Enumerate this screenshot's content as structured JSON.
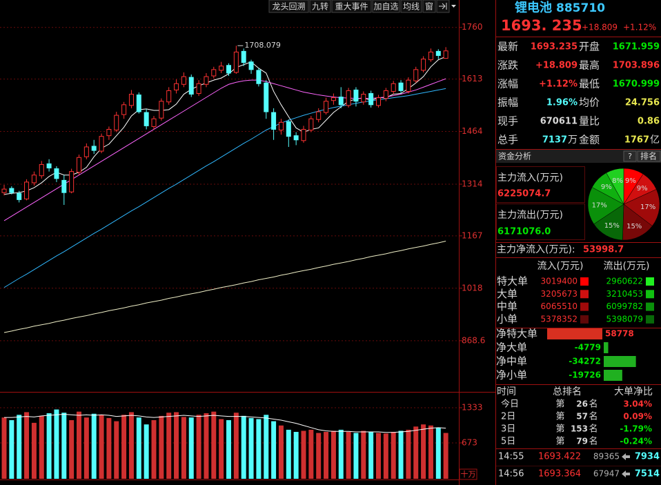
{
  "toolbar": {
    "buttons": [
      "龙头回溯",
      "九转",
      "重大事件",
      "加自选",
      "均线",
      "窗"
    ]
  },
  "chart_data": [
    {
      "type": "candlestick",
      "ylim": [
        729,
        1838
      ],
      "yticks": [
        1760,
        1613,
        1464,
        1314,
        1167,
        1018,
        868.6
      ],
      "up_color": "#ff3232",
      "down_color": "#54fcfc",
      "ohlc": [
        [
          1290,
          1312,
          1282,
          1300
        ],
        [
          1302,
          1308,
          1285,
          1290
        ],
        [
          1288,
          1295,
          1262,
          1270
        ],
        [
          1272,
          1328,
          1268,
          1320
        ],
        [
          1318,
          1350,
          1310,
          1340
        ],
        [
          1338,
          1380,
          1330,
          1370
        ],
        [
          1372,
          1385,
          1350,
          1360
        ],
        [
          1358,
          1365,
          1320,
          1330
        ],
        [
          1325,
          1340,
          1255,
          1290
        ],
        [
          1292,
          1358,
          1288,
          1350
        ],
        [
          1348,
          1398,
          1340,
          1390
        ],
        [
          1392,
          1430,
          1385,
          1420
        ],
        [
          1422,
          1440,
          1400,
          1410
        ],
        [
          1408,
          1458,
          1402,
          1450
        ],
        [
          1452,
          1478,
          1440,
          1470
        ],
        [
          1468,
          1520,
          1462,
          1510
        ],
        [
          1512,
          1548,
          1500,
          1540
        ],
        [
          1538,
          1582,
          1530,
          1570
        ],
        [
          1568,
          1575,
          1515,
          1520
        ],
        [
          1518,
          1528,
          1470,
          1480
        ],
        [
          1478,
          1508,
          1470,
          1500
        ],
        [
          1502,
          1558,
          1495,
          1550
        ],
        [
          1548,
          1590,
          1540,
          1580
        ],
        [
          1582,
          1612,
          1572,
          1600
        ],
        [
          1598,
          1632,
          1590,
          1620
        ],
        [
          1618,
          1626,
          1562,
          1570
        ],
        [
          1572,
          1610,
          1565,
          1600
        ],
        [
          1598,
          1630,
          1590,
          1620
        ],
        [
          1622,
          1648,
          1615,
          1640
        ],
        [
          1638,
          1662,
          1630,
          1650
        ],
        [
          1652,
          1658,
          1622,
          1630
        ],
        [
          1632,
          1708.079,
          1628,
          1690
        ],
        [
          1692,
          1700,
          1650,
          1660
        ],
        [
          1662,
          1668,
          1628,
          1640
        ],
        [
          1638,
          1645,
          1592,
          1600
        ],
        [
          1602,
          1610,
          1500,
          1520
        ],
        [
          1518,
          1530,
          1440,
          1470
        ],
        [
          1468,
          1500,
          1455,
          1490
        ],
        [
          1492,
          1498,
          1420,
          1450
        ],
        [
          1452,
          1462,
          1425,
          1440
        ],
        [
          1438,
          1480,
          1432,
          1470
        ],
        [
          1468,
          1508,
          1462,
          1500
        ],
        [
          1498,
          1530,
          1490,
          1520
        ],
        [
          1518,
          1560,
          1512,
          1550
        ],
        [
          1552,
          1572,
          1540,
          1560
        ],
        [
          1562,
          1590,
          1530,
          1540
        ],
        [
          1538,
          1588,
          1532,
          1580
        ],
        [
          1582,
          1590,
          1535,
          1550
        ],
        [
          1548,
          1578,
          1540,
          1570
        ],
        [
          1572,
          1580,
          1532,
          1540
        ],
        [
          1538,
          1568,
          1532,
          1560
        ],
        [
          1558,
          1588,
          1550,
          1580
        ],
        [
          1578,
          1608,
          1570,
          1600
        ],
        [
          1602,
          1610,
          1572,
          1580
        ],
        [
          1578,
          1618,
          1572,
          1610
        ],
        [
          1608,
          1648,
          1602,
          1640
        ],
        [
          1638,
          1678,
          1632,
          1670
        ],
        [
          1668,
          1700,
          1662,
          1690
        ],
        [
          1692,
          1698,
          1670,
          1680
        ],
        [
          1671.959,
          1703.896,
          1670.999,
          1693.235
        ]
      ],
      "ma": [
        {
          "color": "#ffffff",
          "values": [
            1285,
            1288,
            1290,
            1295,
            1304,
            1318,
            1336,
            1348,
            1340,
            1340,
            1348,
            1362,
            1392,
            1416,
            1428,
            1452,
            1476,
            1508,
            1526,
            1528,
            1524,
            1524,
            1526,
            1542,
            1570,
            1584,
            1594,
            1602,
            1610,
            1616,
            1628,
            1646,
            1654,
            1662,
            1644,
            1630,
            1578,
            1540,
            1506,
            1474,
            1462,
            1470,
            1474,
            1496,
            1518,
            1534,
            1550,
            1556,
            1560,
            1552,
            1560,
            1560,
            1570,
            1572,
            1586,
            1602,
            1620,
            1648,
            1668,
            1677
          ]
        },
        {
          "color": "#ff66ff",
          "values": [
            1210,
            1223,
            1236,
            1249,
            1262,
            1275,
            1288,
            1301,
            1314,
            1327,
            1340,
            1353,
            1366,
            1379,
            1392,
            1405,
            1418,
            1431,
            1444,
            1457,
            1470,
            1483,
            1496,
            1509,
            1522,
            1535,
            1548,
            1561,
            1574,
            1587,
            1598,
            1604,
            1608,
            1610,
            1610,
            1606,
            1600,
            1594,
            1588,
            1582,
            1576,
            1572,
            1568,
            1565,
            1562,
            1560,
            1559,
            1558,
            1558,
            1558,
            1560,
            1562,
            1566,
            1570,
            1576,
            1582,
            1590,
            1598,
            1606,
            1614
          ]
        },
        {
          "color": "#30b8ff",
          "values": [
            1020,
            1033,
            1046,
            1058,
            1071,
            1084,
            1097,
            1110,
            1122,
            1135,
            1148,
            1161,
            1174,
            1186,
            1199,
            1212,
            1225,
            1238,
            1250,
            1263,
            1276,
            1289,
            1302,
            1314,
            1327,
            1340,
            1353,
            1366,
            1378,
            1391,
            1404,
            1417,
            1430,
            1442,
            1455,
            1468,
            1478,
            1488,
            1496,
            1503,
            1510,
            1516,
            1522,
            1527,
            1532,
            1536,
            1540,
            1544,
            1548,
            1551,
            1554,
            1557,
            1560,
            1563,
            1566,
            1570,
            1574,
            1578,
            1582,
            1586
          ]
        },
        {
          "color": "#f0f0c8",
          "values": [
            892,
            896,
            901,
            905,
            910,
            914,
            918,
            923,
            927,
            932,
            936,
            940,
            945,
            949,
            954,
            958,
            962,
            967,
            971,
            976,
            980,
            984,
            989,
            993,
            998,
            1002,
            1006,
            1011,
            1015,
            1020,
            1024,
            1028,
            1033,
            1037,
            1042,
            1046,
            1050,
            1055,
            1059,
            1064,
            1068,
            1072,
            1077,
            1081,
            1086,
            1090,
            1094,
            1099,
            1103,
            1108,
            1112,
            1116,
            1121,
            1125,
            1130,
            1134,
            1138,
            1143,
            1147,
            1152
          ]
        }
      ]
    },
    {
      "type": "bar",
      "unit": "十万",
      "ylim": [
        0,
        1579
      ],
      "yticks": [
        1333,
        673
      ],
      "values": [
        1150,
        1100,
        1200,
        1250,
        1050,
        1180,
        1230,
        1300,
        1240,
        1100,
        1260,
        1150,
        1220,
        1200,
        1140,
        1080,
        1200,
        1250,
        1150,
        1020,
        1100,
        1180,
        1240,
        1250,
        1160,
        1150,
        1200,
        1230,
        1260,
        1120,
        1100,
        1240,
        1180,
        1140,
        1120,
        1200,
        1080,
        1000,
        920,
        880,
        900,
        920,
        860,
        880,
        900,
        920,
        880,
        860,
        900,
        880,
        860,
        850,
        880,
        900,
        920,
        980,
        1020,
        1000,
        960,
        860
      ],
      "ma": [
        {
          "color": "#ffffff",
          "values": [
            1150,
            1150,
            1160,
            1170,
            1160,
            1180,
            1190,
            1200,
            1210,
            1200,
            1190,
            1200,
            1190,
            1200,
            1190,
            1170,
            1180,
            1190,
            1180,
            1160,
            1150,
            1160,
            1170,
            1180,
            1190,
            1180,
            1170,
            1180,
            1190,
            1180,
            1170,
            1170,
            1170,
            1160,
            1150,
            1140,
            1120,
            1100,
            1070,
            1040,
            1000,
            960,
            920,
            900,
            890,
            890,
            890,
            880,
            880,
            880,
            880,
            870,
            870,
            880,
            890,
            910,
            930,
            950,
            960,
            950
          ]
        }
      ]
    }
  ],
  "header": {
    "name": "锂电池",
    "code": "885710",
    "price": "1693. 235",
    "change": "+18.809",
    "change_pct": "+1.12%"
  },
  "quote": [
    {
      "label": "最新",
      "value": "1693.235",
      "label2": "开盘",
      "value2": "1671.959"
    },
    {
      "label": "涨跌",
      "value": "+18.809",
      "label2": "最高",
      "value2": "1703.896"
    },
    {
      "label": "涨幅",
      "value": "+1.12%",
      "label2": "最低",
      "value2": "1670.999"
    },
    {
      "label": "振幅",
      "value": "1.96%",
      "label2": "均价",
      "value2": "24.756"
    },
    {
      "label": "现手",
      "value": "670611",
      "label2": "量比",
      "value2": "0.86"
    },
    {
      "label": "总手",
      "value": "7137",
      "unit": "万",
      "label2": "金额",
      "value2": "1767",
      "unit2": "亿"
    }
  ],
  "fund": {
    "title": "资金分析",
    "help": "?",
    "rank_button": "排名",
    "inflow_label": "主力流入(万元)",
    "inflow": "6225074.7",
    "outflow_label": "主力流出(万元)",
    "outflow": "6171076.0",
    "net_label": "主力净流入(万元):",
    "net": "53998.7",
    "pie": {
      "values": [
        9,
        9,
        17,
        15,
        15,
        17,
        9,
        8
      ],
      "value_labels": [
        "9%",
        "9%",
        "17%",
        "15%",
        "15%",
        "17%",
        "9%",
        "8%"
      ],
      "colors": [
        "#ff0000",
        "#d01010",
        "#a00a0a",
        "#780808",
        "#086808",
        "#0a900a",
        "#10b010",
        "#20d020"
      ]
    },
    "flow_headers": [
      "流入(万元)",
      "流出(万元)"
    ],
    "flow_rows": [
      {
        "label": "特大单",
        "in": "3019400",
        "out": "2960622"
      },
      {
        "label": "大单",
        "in": "3205673",
        "out": "3210453"
      },
      {
        "label": "中单",
        "in": "6065510",
        "out": "6099782"
      },
      {
        "label": "小单",
        "in": "5378352",
        "out": "5398079"
      }
    ],
    "net_rows": [
      {
        "label": "净特大单",
        "value": 58778
      },
      {
        "label": "净大单",
        "value": -4779
      },
      {
        "label": "净中单",
        "value": -34272
      },
      {
        "label": "净小单",
        "value": -19726
      }
    ]
  },
  "ranking": {
    "headers": [
      "时间",
      "总排名",
      "大单净比"
    ],
    "rows": [
      {
        "time": "今日",
        "prefix": "第",
        "rank": "26",
        "suffix": "名",
        "ratio": "3.04%"
      },
      {
        "time": "2日",
        "prefix": "第",
        "rank": "57",
        "suffix": "名",
        "ratio": "0.09%"
      },
      {
        "time": "3日",
        "prefix": "第",
        "rank": "153",
        "suffix": "名",
        "ratio": "-1.79%"
      },
      {
        "time": "5日",
        "prefix": "第",
        "rank": "79",
        "suffix": "名",
        "ratio": "-0.24%"
      }
    ]
  },
  "ticks": [
    {
      "time": "14:55",
      "price": "1693.422",
      "volume": "89365",
      "count": "7934"
    },
    {
      "time": "14:56",
      "price": "1693.364",
      "volume": "67947",
      "count": "7514"
    }
  ]
}
